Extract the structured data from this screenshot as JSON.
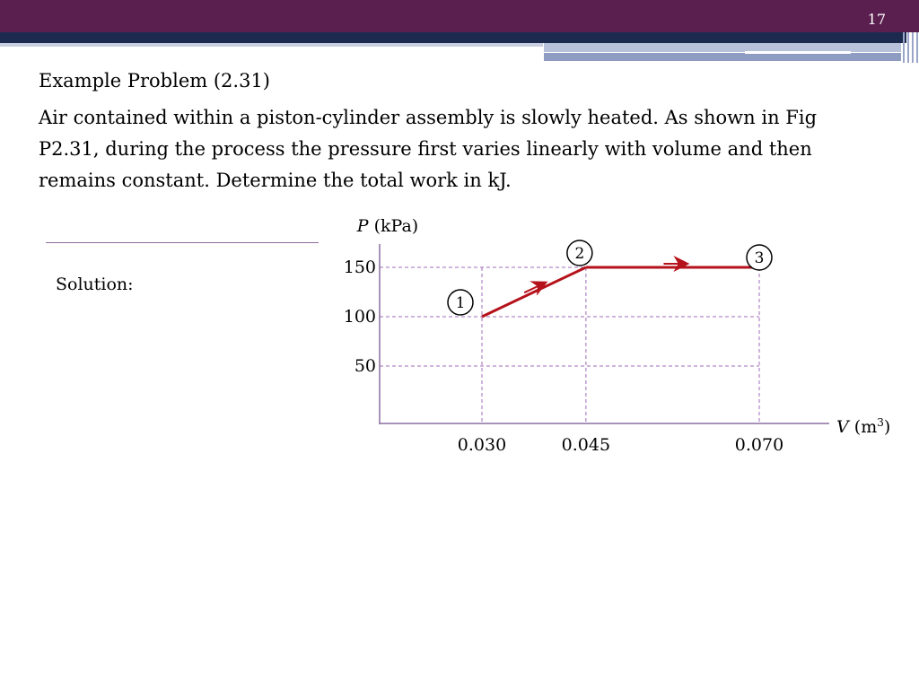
{
  "slide": {
    "number": "17"
  },
  "header": {
    "colors": {
      "title_bar": "#5a1f4e",
      "navy_bar": "#1b2a4e",
      "accent_light": "#b7c1d9",
      "accent_mid": "#8f9cc1"
    }
  },
  "content": {
    "heading": "Example Problem (2.31)",
    "problem": "Air contained within a piston-cylinder assembly is slowly heated. As shown in Fig P2.31, during the process the pressure first varies linearly with volume and then remains constant.  Determine the total work in kJ.",
    "solution_label": "Solution:"
  },
  "chart_data": {
    "type": "line",
    "ylabel": {
      "var": "P",
      "unit": "(kPa)"
    },
    "xlabel": {
      "var": "V",
      "unit": "(m",
      "sup": "3",
      "close": ")"
    },
    "yticks": [
      {
        "value": 150,
        "label": "150"
      },
      {
        "value": 100,
        "label": "100"
      },
      {
        "value": 50,
        "label": "50"
      }
    ],
    "xticks": [
      {
        "value": 0.03,
        "label": "0.030"
      },
      {
        "value": 0.045,
        "label": "0.045"
      },
      {
        "value": 0.07,
        "label": "0.070"
      }
    ],
    "points": [
      {
        "state": "1",
        "x": 0.03,
        "y": 100
      },
      {
        "state": "2",
        "x": 0.045,
        "y": 150
      },
      {
        "state": "3",
        "x": 0.07,
        "y": 150
      }
    ],
    "grid": "dashed at labeled ticks",
    "colors": {
      "process": "#b5121b",
      "grid": "#a06bb8",
      "axis": "#8b6fa0"
    }
  }
}
